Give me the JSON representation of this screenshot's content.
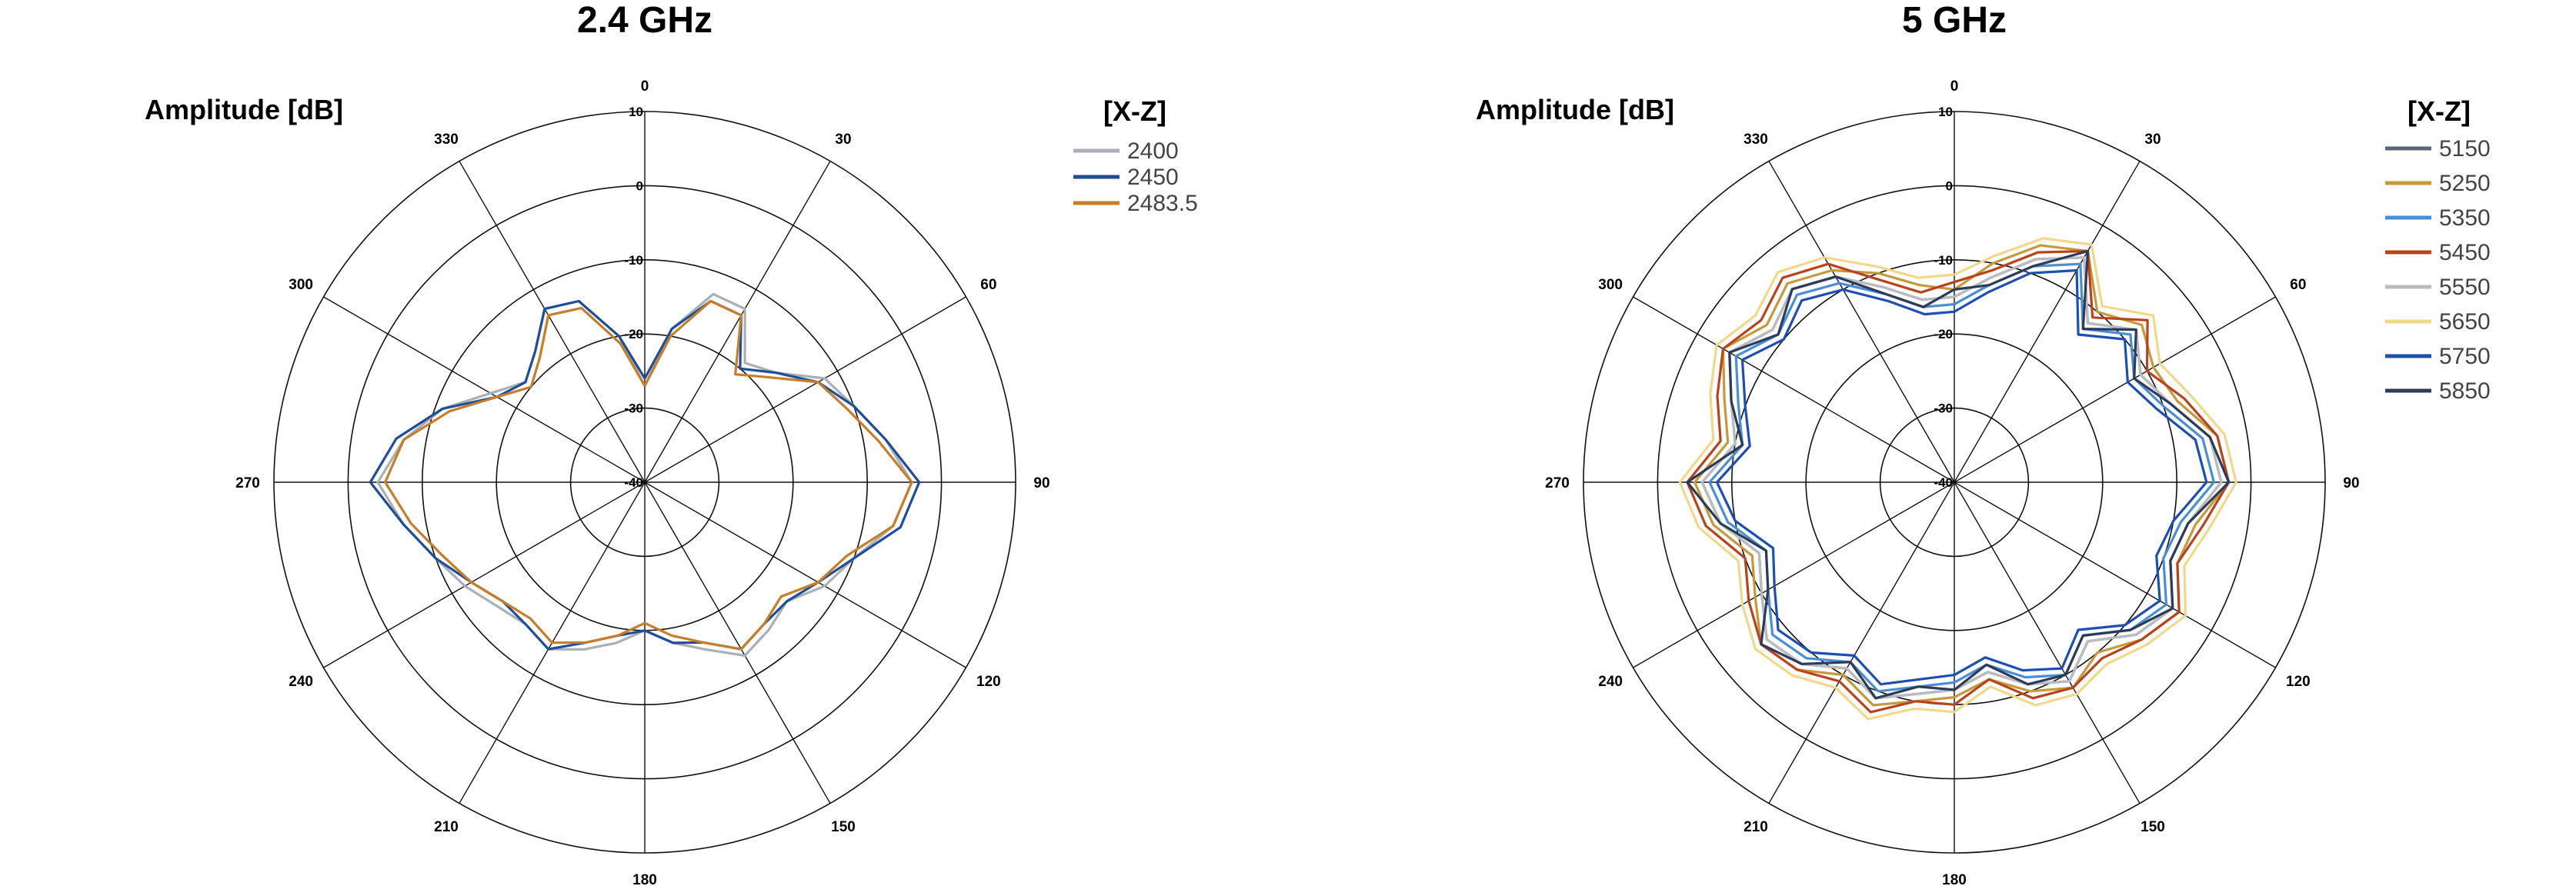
{
  "chart_data": [
    {
      "type": "polar-line",
      "title": "2.4 GHz",
      "rlabel": "Amplitude [dB]",
      "rlim": [
        -40,
        10
      ],
      "rticks": [
        "10",
        "0",
        "-10",
        "-20",
        "-30",
        "-40"
      ],
      "angle_ticks": [
        "0",
        "30",
        "60",
        "90",
        "120",
        "150",
        "180",
        "210",
        "240",
        "270",
        "300",
        "330"
      ],
      "grid": true,
      "legend_title": "[X-Z]",
      "legend_position": "top-right",
      "angles": [
        0,
        10,
        20,
        30,
        40,
        50,
        60,
        70,
        80,
        90,
        100,
        110,
        120,
        130,
        140,
        150,
        160,
        170,
        180,
        190,
        200,
        210,
        220,
        230,
        240,
        250,
        260,
        270,
        280,
        290,
        300,
        310,
        320,
        330,
        340,
        350
      ],
      "series": [
        {
          "name": "2400",
          "color": "#aab0b7",
          "values": [
            -27,
            -19,
            -13,
            -13,
            -19,
            -17,
            -12,
            -10,
            -7,
            -4,
            -6,
            -10,
            -12,
            -15,
            -14,
            -13,
            -16,
            -18,
            -20,
            -18,
            -16,
            -14,
            -15,
            -14,
            -12,
            -10,
            -7,
            -4,
            -7,
            -11,
            -16,
            -19,
            -17,
            -13,
            -14,
            -20
          ]
        },
        {
          "name": "2450",
          "color": "#1f4e99",
          "values": [
            -26,
            -19,
            -14,
            -14,
            -20,
            -17,
            -13,
            -10,
            -7,
            -3,
            -5,
            -10,
            -13,
            -15,
            -15,
            -14,
            -17,
            -18,
            -20,
            -19,
            -17,
            -14,
            -15,
            -15,
            -13,
            -10,
            -7,
            -3,
            -6,
            -11,
            -17,
            -19,
            -17,
            -13,
            -14,
            -20
          ]
        },
        {
          "name": "2483.5",
          "color": "#c87e28",
          "values": [
            -27,
            -20,
            -14,
            -14,
            -21,
            -18,
            -13,
            -11,
            -8,
            -4,
            -6,
            -11,
            -13,
            -16,
            -15,
            -14,
            -17,
            -19,
            -21,
            -19,
            -17,
            -15,
            -16,
            -15,
            -13,
            -11,
            -8,
            -5,
            -7,
            -12,
            -17,
            -20,
            -18,
            -14,
            -15,
            -21
          ]
        }
      ]
    },
    {
      "type": "polar-line",
      "title": "5 GHz",
      "rlabel": "Amplitude [dB]",
      "rlim": [
        -40,
        10
      ],
      "rticks": [
        "10",
        "0",
        "-10",
        "-20",
        "-30",
        "-40"
      ],
      "angle_ticks": [
        "0",
        "30",
        "60",
        "90",
        "120",
        "150",
        "180",
        "210",
        "240",
        "270",
        "300",
        "330"
      ],
      "grid": true,
      "legend_title": "[X-Z]",
      "legend_position": "top-right",
      "angles": [
        0,
        10,
        20,
        30,
        40,
        50,
        60,
        70,
        80,
        90,
        100,
        110,
        120,
        130,
        140,
        150,
        160,
        170,
        180,
        190,
        200,
        210,
        220,
        230,
        240,
        250,
        260,
        270,
        280,
        290,
        300,
        310,
        320,
        330,
        340,
        350
      ],
      "series": [
        {
          "name": "5150",
          "color": "#5a6378",
          "values": [
            -15,
            -12,
            -8,
            -5,
            -12,
            -8,
            -11,
            -9,
            -5,
            -4,
            -8,
            -9,
            -6,
            -8,
            -12,
            -9,
            -11,
            -14,
            -12,
            -11,
            -9,
            -11,
            -8,
            -7,
            -10,
            -12,
            -8,
            -6,
            -10,
            -8,
            -5,
            -8,
            -6,
            -8,
            -12,
            -15
          ]
        },
        {
          "name": "5250",
          "color": "#c49a3a",
          "values": [
            -14,
            -10,
            -6,
            -4,
            -10,
            -7,
            -9,
            -8,
            -4,
            -3,
            -7,
            -8,
            -5,
            -7,
            -10,
            -8,
            -10,
            -13,
            -11,
            -10,
            -8,
            -10,
            -7,
            -6,
            -9,
            -11,
            -7,
            -5,
            -9,
            -7,
            -4,
            -7,
            -5,
            -7,
            -10,
            -13
          ]
        },
        {
          "name": "5350",
          "color": "#4a8fd6",
          "values": [
            -16,
            -13,
            -9,
            -6,
            -13,
            -9,
            -12,
            -10,
            -6,
            -5,
            -9,
            -10,
            -7,
            -9,
            -13,
            -10,
            -12,
            -15,
            -13,
            -12,
            -10,
            -12,
            -9,
            -8,
            -11,
            -13,
            -9,
            -7,
            -11,
            -9,
            -6,
            -9,
            -7,
            -9,
            -13,
            -16
          ]
        },
        {
          "name": "5450",
          "color": "#b8441e",
          "values": [
            -13,
            -11,
            -7,
            -4,
            -11,
            -6,
            -10,
            -7,
            -4,
            -3,
            -6,
            -8,
            -5,
            -7,
            -9,
            -8,
            -9,
            -13,
            -10,
            -10,
            -7,
            -9,
            -7,
            -6,
            -8,
            -10,
            -6,
            -4,
            -8,
            -6,
            -4,
            -6,
            -4,
            -6,
            -11,
            -14
          ]
        },
        {
          "name": "5550",
          "color": "#b9bcc0",
          "values": [
            -15,
            -12,
            -8,
            -5,
            -12,
            -8,
            -11,
            -9,
            -5,
            -4,
            -8,
            -9,
            -6,
            -8,
            -12,
            -9,
            -11,
            -14,
            -12,
            -11,
            -9,
            -11,
            -8,
            -7,
            -10,
            -12,
            -8,
            -6,
            -10,
            -8,
            -5,
            -8,
            -6,
            -8,
            -12,
            -15
          ]
        },
        {
          "name": "5650",
          "color": "#f0d98a",
          "values": [
            -12,
            -9,
            -5,
            -3,
            -9,
            -5,
            -8,
            -6,
            -3,
            -2,
            -5,
            -7,
            -4,
            -6,
            -8,
            -7,
            -8,
            -12,
            -9,
            -9,
            -6,
            -8,
            -6,
            -5,
            -7,
            -9,
            -5,
            -3,
            -7,
            -5,
            -3,
            -5,
            -3,
            -5,
            -9,
            -12
          ]
        },
        {
          "name": "5750",
          "color": "#1d4fb3",
          "values": [
            -17,
            -14,
            -10,
            -7,
            -14,
            -10,
            -13,
            -11,
            -7,
            -6,
            -10,
            -11,
            -8,
            -10,
            -14,
            -11,
            -13,
            -16,
            -14,
            -13,
            -11,
            -13,
            -10,
            -9,
            -12,
            -14,
            -10,
            -8,
            -12,
            -10,
            -7,
            -10,
            -8,
            -10,
            -14,
            -17
          ]
        },
        {
          "name": "5850",
          "color": "#2c3b57",
          "values": [
            -14,
            -13,
            -9,
            -4,
            -13,
            -8,
            -12,
            -9,
            -5,
            -3,
            -8,
            -9,
            -6,
            -9,
            -13,
            -10,
            -11,
            -15,
            -12,
            -12,
            -9,
            -12,
            -8,
            -6,
            -11,
            -13,
            -8,
            -4,
            -11,
            -8,
            -5,
            -9,
            -6,
            -8,
            -13,
            -16
          ]
        }
      ]
    }
  ]
}
